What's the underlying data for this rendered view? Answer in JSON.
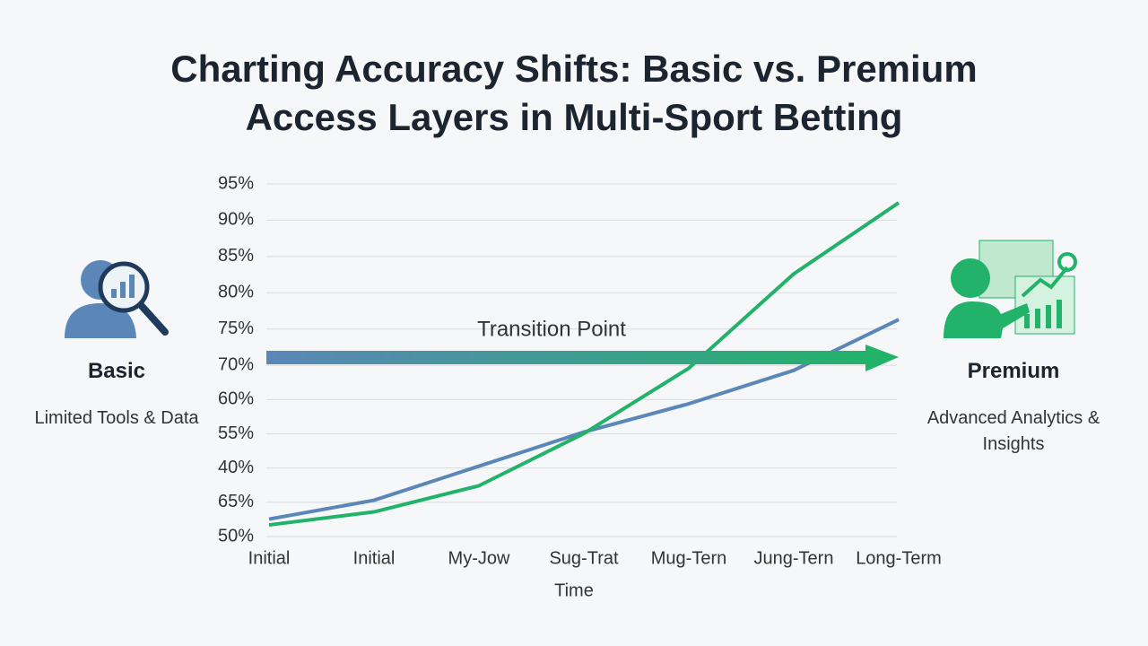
{
  "chart_data": {
    "type": "line",
    "title": "Charting Accuracy Shifts: Basic vs. Premium Access Layers in Multi-Sport Betting",
    "x_label": "Time",
    "categories": [
      "Initial",
      "Initial",
      "My-Jow",
      "Sug-Trat",
      "Mug-Tern",
      "Jung-Tern",
      "Long-Term"
    ],
    "series": [
      {
        "name": "Basic",
        "color": "#5b87b8",
        "values": [
          48.8,
          51.4,
          56.1,
          60.8,
          64.7,
          69.3,
          76.3
        ]
      },
      {
        "name": "Premium",
        "color": "#22b26a",
        "values": [
          48.0,
          49.8,
          53.4,
          60.6,
          69.6,
          82.6,
          92.4
        ]
      }
    ],
    "ylim": [
      46.4,
      95
    ],
    "yticks": [
      {
        "value": 95,
        "label": "95%"
      },
      {
        "value": 90,
        "label": "90%"
      },
      {
        "value": 85,
        "label": "85%"
      },
      {
        "value": 80,
        "label": "80%"
      },
      {
        "value": 75,
        "label": "75%"
      },
      {
        "value": 70,
        "label": "70%"
      }
    ],
    "lower_ytick_labels": [
      "60%",
      "55%",
      "40%",
      "65%",
      "50%"
    ],
    "grid": true,
    "annotation": "Transition Point",
    "left_panel": {
      "subtitle": "Limited Tools & Data"
    },
    "right_panel": {
      "subtitle": "Advanced Analytics & Insights"
    }
  }
}
